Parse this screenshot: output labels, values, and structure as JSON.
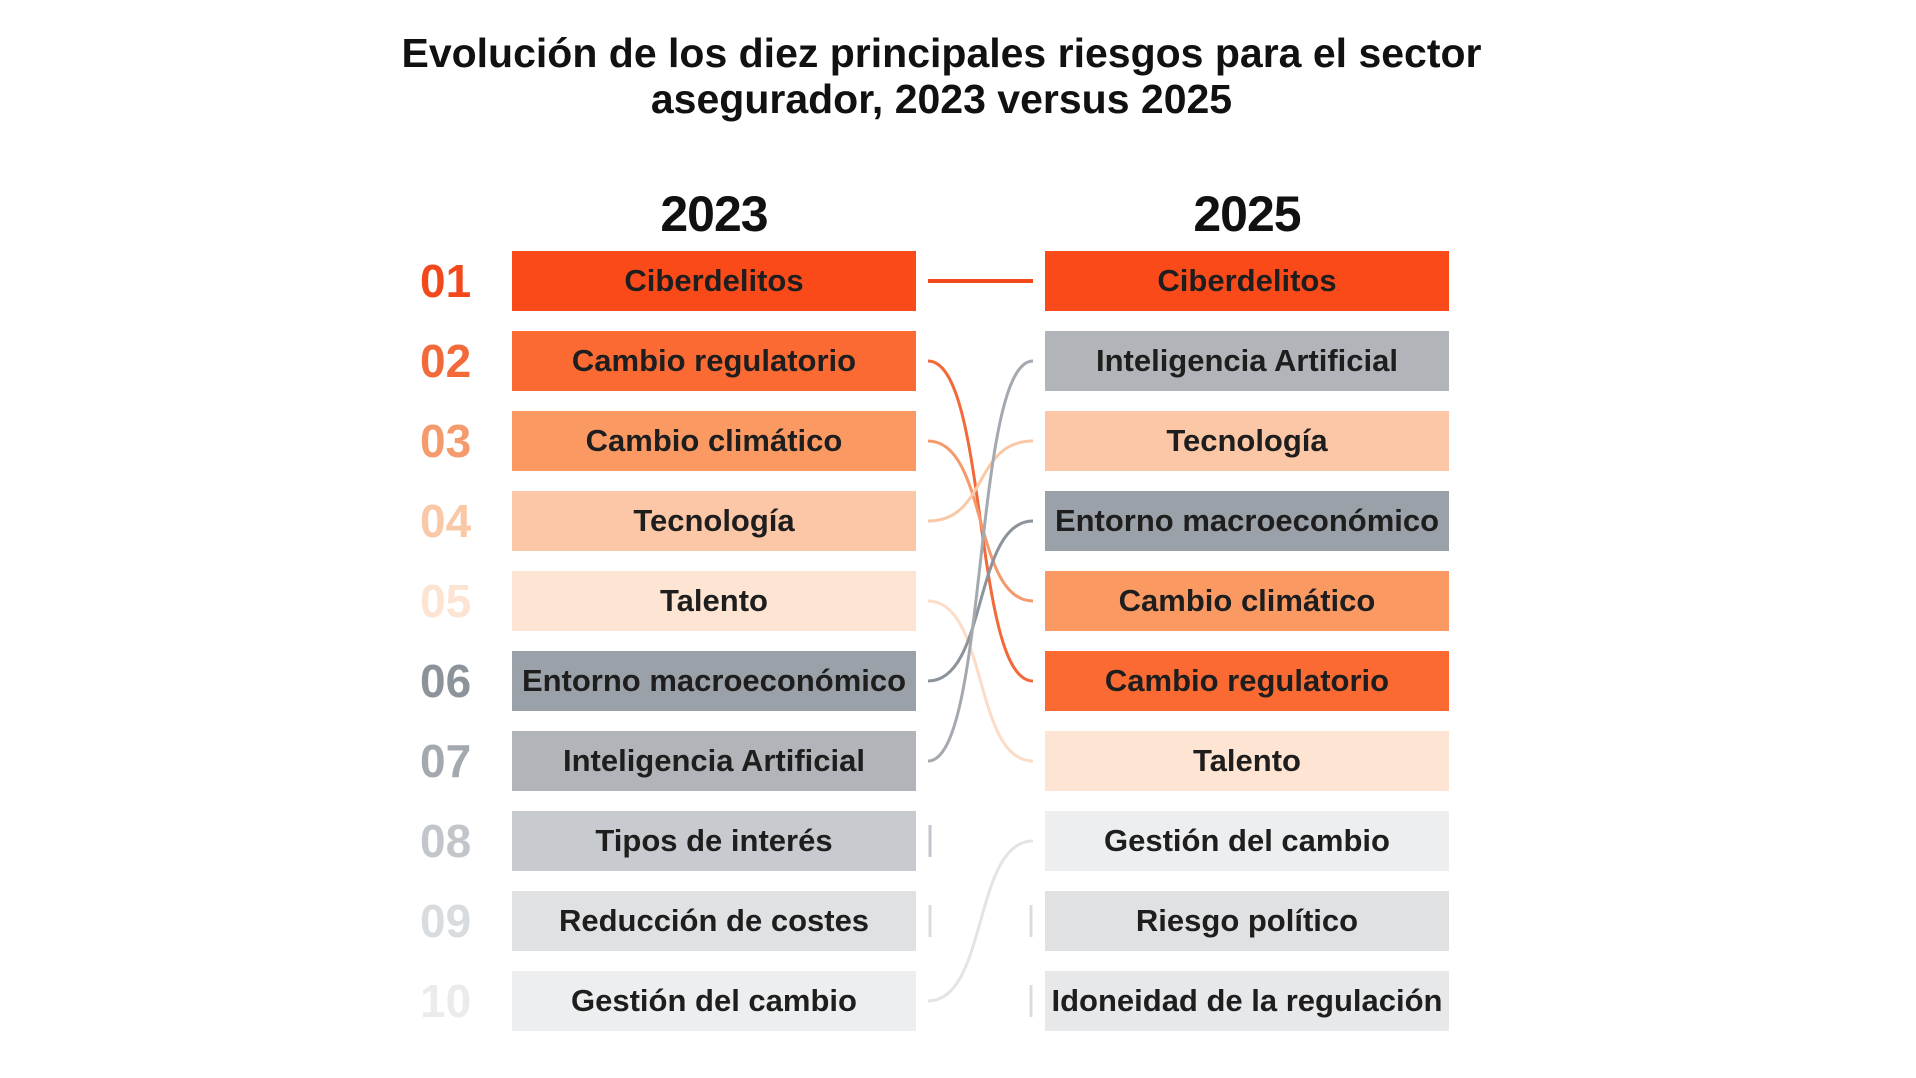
{
  "title_line1": "Evolución de los diez principales riesgos para el sector",
  "title_line2": "asegurador, 2023 versus 2025",
  "columns": {
    "left": "2023",
    "right": "2025"
  },
  "ranks": [
    {
      "label": "01",
      "color": "#f2481c"
    },
    {
      "label": "02",
      "color": "#f26a3a"
    },
    {
      "label": "03",
      "color": "#f49a6c"
    },
    {
      "label": "04",
      "color": "#f9c8a6"
    },
    {
      "label": "05",
      "color": "#fce3d2"
    },
    {
      "label": "06",
      "color": "#8d939a"
    },
    {
      "label": "07",
      "color": "#a4a9b0"
    },
    {
      "label": "08",
      "color": "#c2c6cb"
    },
    {
      "label": "09",
      "color": "#d9dcdf"
    },
    {
      "label": "10",
      "color": "#eaebed"
    }
  ],
  "items_2023": [
    {
      "label": "Ciberdelitos",
      "color": "#fa4a1a"
    },
    {
      "label": "Cambio regulatorio",
      "color": "#fa6a32"
    },
    {
      "label": "Cambio climático",
      "color": "#fb9963"
    },
    {
      "label": "Tecnología",
      "color": "#fcc7a6"
    },
    {
      "label": "Talento",
      "color": "#fee4d3"
    },
    {
      "label": "Entorno macroeconómico",
      "color": "#9ba1a8"
    },
    {
      "label": "Inteligencia Artificial",
      "color": "#b1b5ba"
    },
    {
      "label": "Tipos de interés",
      "color": "#c7cace"
    },
    {
      "label": "Reducción de costes",
      "color": "#dfe1e3"
    },
    {
      "label": "Gestión del cambio",
      "color": "#eceeef"
    }
  ],
  "items_2025": [
    {
      "label": "Ciberdelitos",
      "color": "#fa4a1a"
    },
    {
      "label": "Inteligencia Artificial",
      "color": "#b1b5ba"
    },
    {
      "label": "Tecnología",
      "color": "#fcc7a6"
    },
    {
      "label": "Entorno macroeconómico",
      "color": "#9ba1a8"
    },
    {
      "label": "Cambio climático",
      "color": "#fb9963"
    },
    {
      "label": "Cambio regulatorio",
      "color": "#fa6a32"
    },
    {
      "label": "Talento",
      "color": "#fee4d3"
    },
    {
      "label": "Gestión del cambio",
      "color": "#eceeef"
    },
    {
      "label": "Riesgo político",
      "color": "#dfe1e3"
    },
    {
      "label": "Idoneidad de la regulación",
      "color": "#e6e8ea"
    }
  ],
  "links": [
    {
      "from": 1,
      "to": 1,
      "color": "#f2481c"
    },
    {
      "from": 2,
      "to": 6,
      "color": "#f26a3a"
    },
    {
      "from": 3,
      "to": 5,
      "color": "#f49a6c"
    },
    {
      "from": 4,
      "to": 3,
      "color": "#f9c8a6"
    },
    {
      "from": 5,
      "to": 7,
      "color": "#fcdcc8"
    },
    {
      "from": 6,
      "to": 4,
      "color": "#8d939a"
    },
    {
      "from": 7,
      "to": 2,
      "color": "#a4a9b0"
    },
    {
      "from": 10,
      "to": 8,
      "color": "#e2e4e6"
    }
  ],
  "exits": [
    {
      "rank": 8,
      "color": "#c2c6cb"
    },
    {
      "rank": 9,
      "color": "#d9dcdf"
    }
  ],
  "entries": [
    {
      "rank": 9,
      "color": "#d9dcdf"
    },
    {
      "rank": 10,
      "color": "#d9dcdf"
    }
  ]
}
